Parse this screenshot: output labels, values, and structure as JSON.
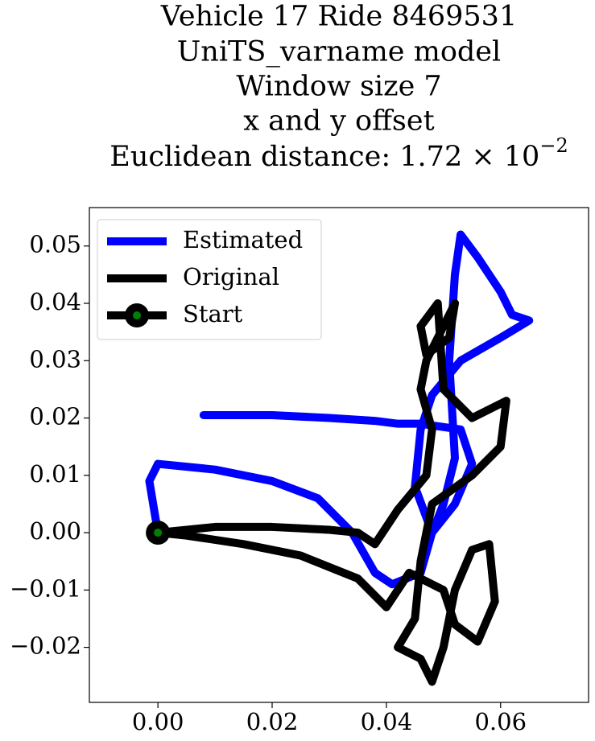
{
  "chart_data": {
    "type": "line",
    "title_lines": [
      "Vehicle 17 Ride 8469531",
      "UniTS_varname model",
      "Window size 7",
      "x and y offset"
    ],
    "title_distance": {
      "text": "Euclidean distance: 1.72 × 10",
      "exponent": "−2"
    },
    "xlim": [
      -0.012,
      0.0754
    ],
    "ylim": [
      -0.0296,
      0.0567
    ],
    "xticks": [
      {
        "value": 0,
        "label": "0.00"
      },
      {
        "value": 0.02,
        "label": "0.02"
      },
      {
        "value": 0.04,
        "label": "0.04"
      },
      {
        "value": 0.06,
        "label": "0.06"
      }
    ],
    "yticks": [
      {
        "value": -0.02,
        "label": "−0.02"
      },
      {
        "value": -0.01,
        "label": "−0.01"
      },
      {
        "value": 0,
        "label": "0.00"
      },
      {
        "value": 0.01,
        "label": "0.01"
      },
      {
        "value": 0.02,
        "label": "0.02"
      },
      {
        "value": 0.03,
        "label": "0.03"
      },
      {
        "value": 0.04,
        "label": "0.04"
      },
      {
        "value": 0.05,
        "label": "0.05"
      }
    ],
    "legend": "upper left",
    "series": [
      {
        "name": "Estimated",
        "color": "#0000ff",
        "x": [
          0,
          -0.0015,
          0.0,
          0.01,
          0.02,
          0.028,
          0.034,
          0.038,
          0.041,
          0.046,
          0.048,
          0.05,
          0.052,
          0.051,
          0.052,
          0.053,
          0.056,
          0.06,
          0.062,
          0.065,
          0.06,
          0.053,
          0.048,
          0.046,
          0.045,
          0.048,
          0.052,
          0.055,
          0.053,
          0.046,
          0.042,
          0.038,
          0.03,
          0.02,
          0.008
        ],
        "values": [
          0,
          0.009,
          0.012,
          0.011,
          0.009,
          0.006,
          0.0,
          -0.007,
          -0.009,
          -0.007,
          0.0,
          0.005,
          0.013,
          0.03,
          0.045,
          0.052,
          0.048,
          0.042,
          0.038,
          0.037,
          0.034,
          0.03,
          0.024,
          0.018,
          0.008,
          0.0,
          0.005,
          0.012,
          0.018,
          0.019,
          0.019,
          0.0195,
          0.02,
          0.0205,
          0.0205
        ]
      },
      {
        "name": "Original",
        "color": "#000000",
        "x": [
          0,
          0.01,
          0.02,
          0.03,
          0.035,
          0.038,
          0.042,
          0.047,
          0.048,
          0.046,
          0.047,
          0.05,
          0.052,
          0.051,
          0.047,
          0.046,
          0.049,
          0.05,
          0.055,
          0.061,
          0.06,
          0.055,
          0.048,
          0.046,
          0.045,
          0.042,
          0.046,
          0.048,
          0.05,
          0.052,
          0.055,
          0.058,
          0.059,
          0.056,
          0.052,
          0.05,
          0.044,
          0.04,
          0.035,
          0.025,
          0.015,
          0.005,
          0
        ],
        "values": [
          0,
          0.001,
          0.001,
          0.0005,
          0.0,
          -0.002,
          0.004,
          0.01,
          0.018,
          0.025,
          0.03,
          0.036,
          0.04,
          0.034,
          0.031,
          0.036,
          0.04,
          0.025,
          0.02,
          0.023,
          0.015,
          0.01,
          0.005,
          -0.005,
          -0.015,
          -0.02,
          -0.022,
          -0.026,
          -0.02,
          -0.01,
          -0.003,
          -0.002,
          -0.012,
          -0.019,
          -0.016,
          -0.01,
          -0.007,
          -0.013,
          -0.008,
          -0.004,
          -0.002,
          -0.0005,
          0
        ]
      },
      {
        "name": "Start",
        "color": "#000000",
        "marker_color": "#008000",
        "x": [
          0
        ],
        "values": [
          0
        ]
      }
    ]
  }
}
